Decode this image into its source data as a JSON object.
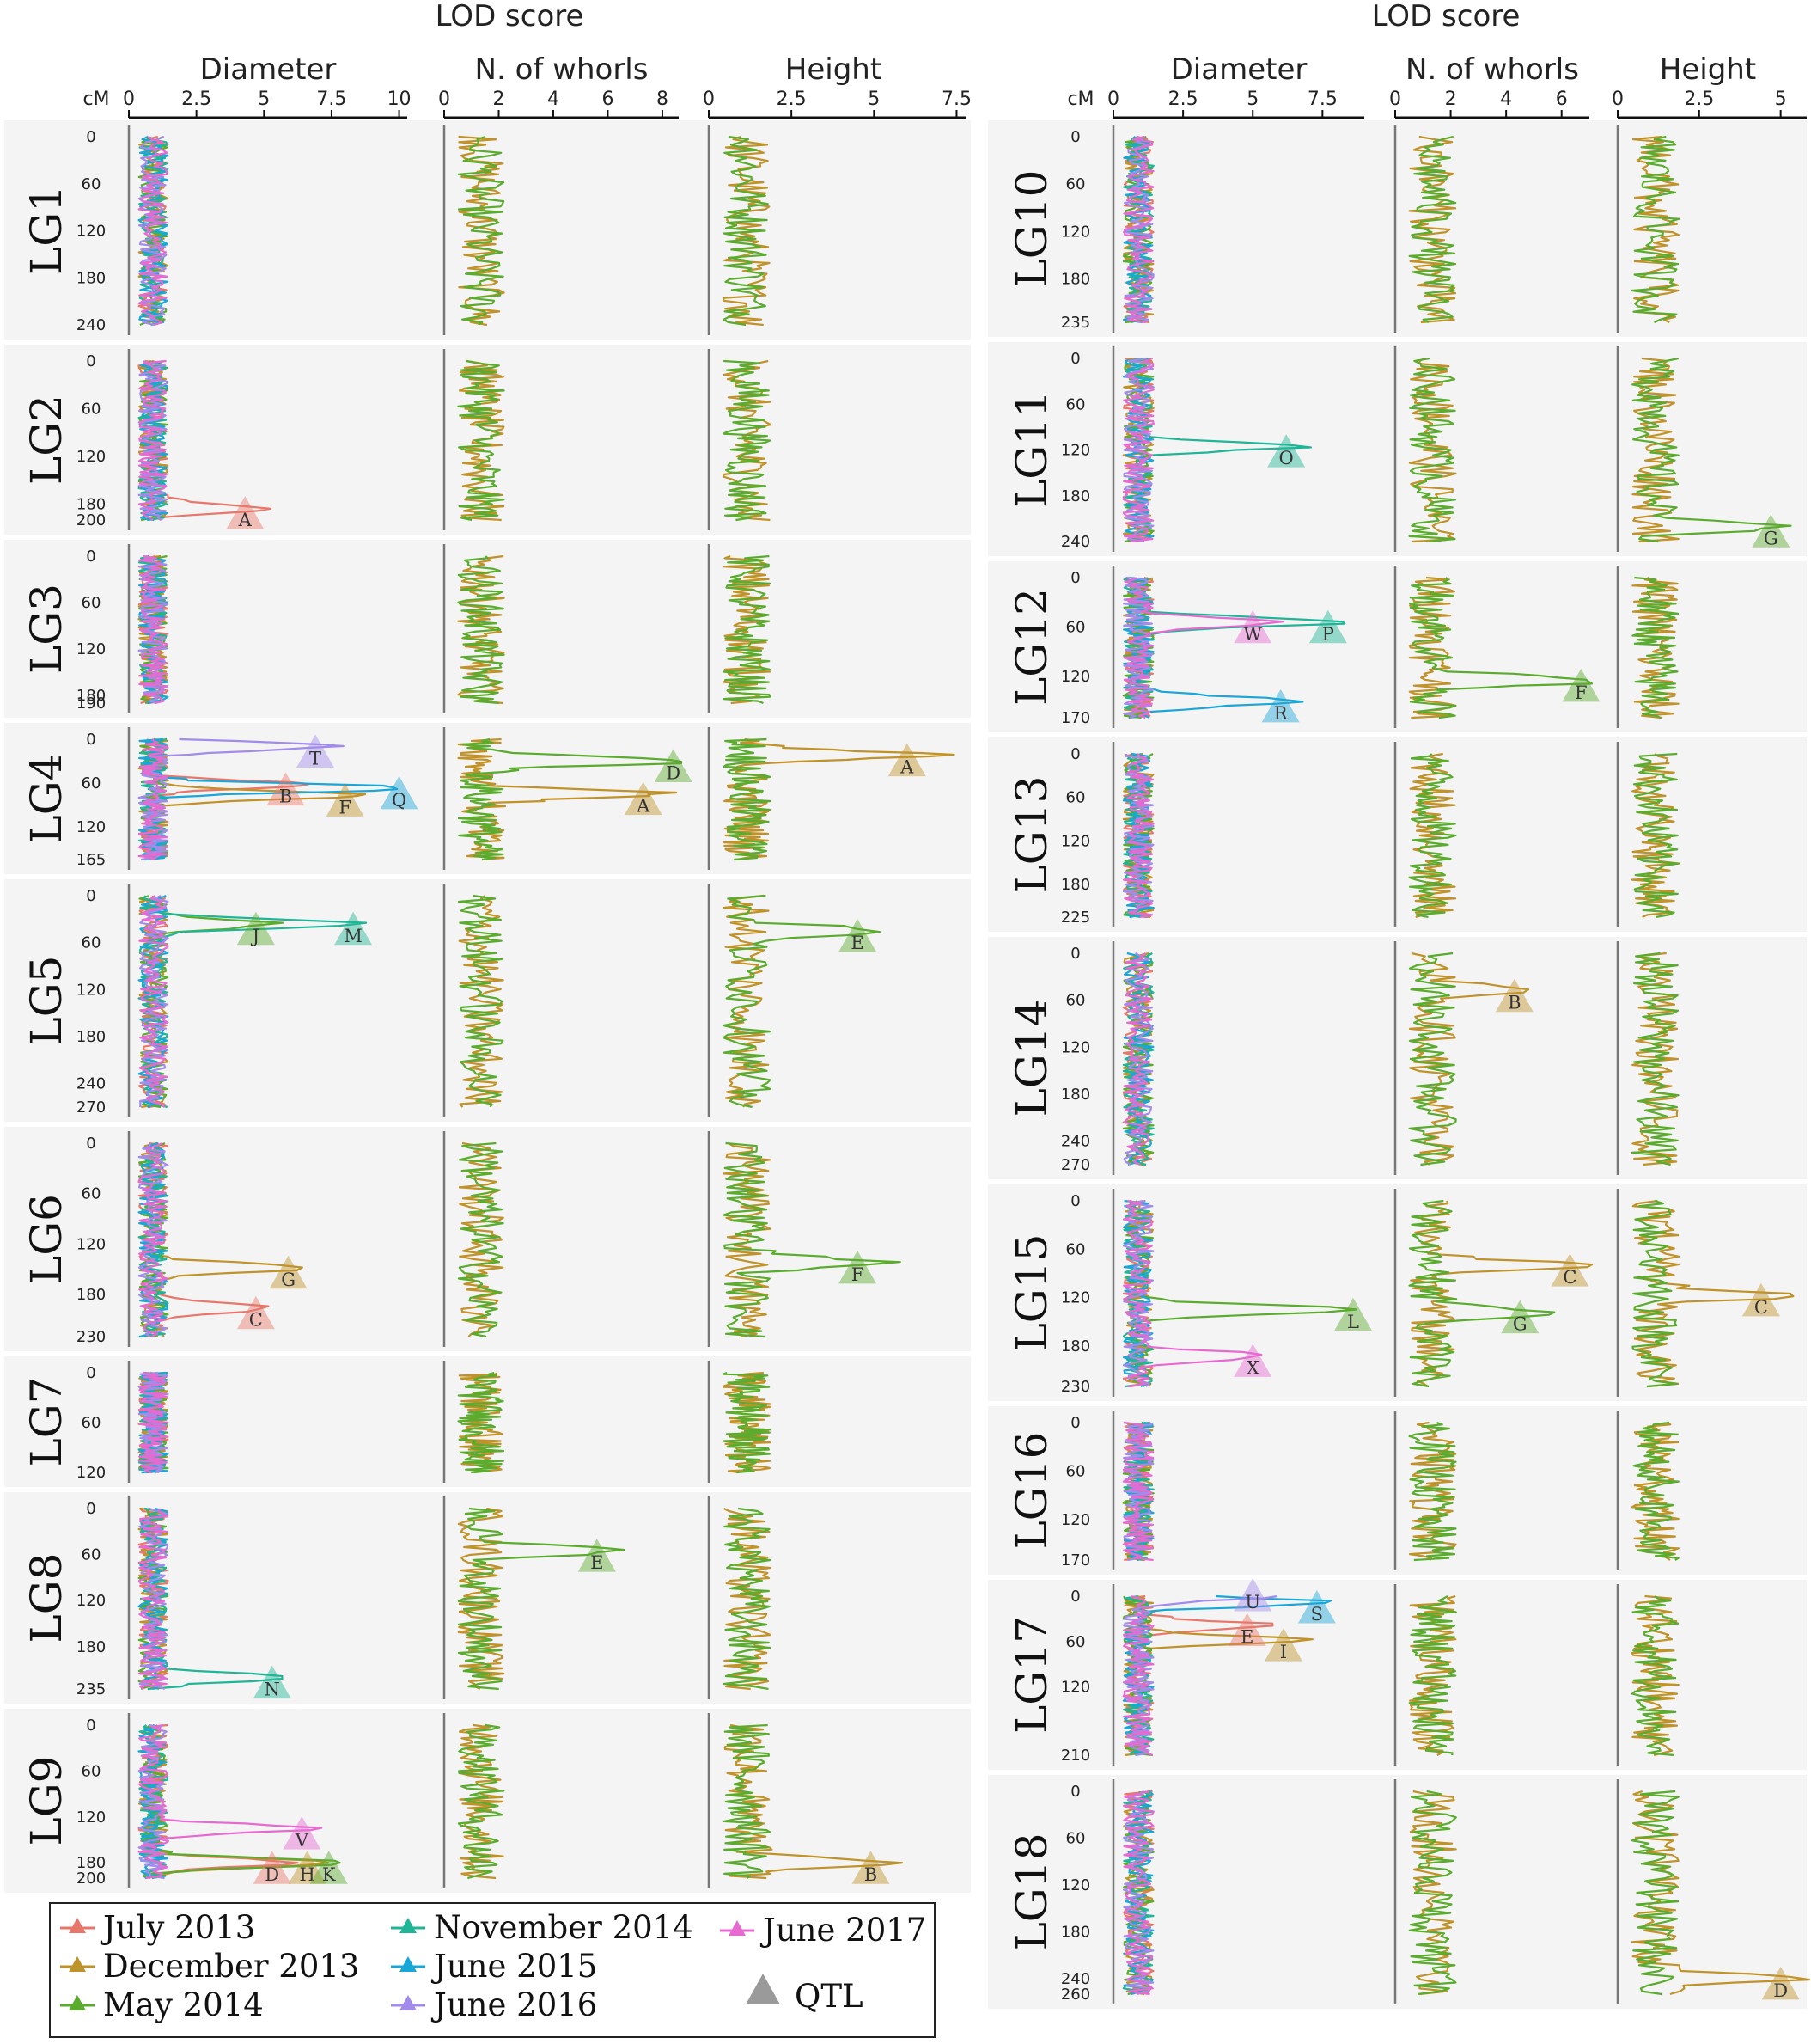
{
  "chart_data": {
    "type": "line",
    "x_axis_label": "LOD score",
    "y_axis_unit": "cM",
    "traits": [
      {
        "name": "Diameter",
        "ticks_left": [
          0,
          2.5,
          5,
          7.5,
          10
        ],
        "ticks_right": [
          0,
          2.5,
          5,
          7.5
        ]
      },
      {
        "name": "N. of whorls",
        "ticks_left": [
          0,
          2,
          4,
          6,
          8
        ],
        "ticks_right": [
          0,
          2,
          4,
          6
        ]
      },
      {
        "name": "Height",
        "ticks_left": [
          0,
          2.5,
          5,
          7.5
        ],
        "ticks_right": [
          0,
          2.5,
          5
        ]
      }
    ],
    "series": [
      {
        "name": "July 2013",
        "color": "#e8776b"
      },
      {
        "name": "December 2013",
        "color": "#c0922a"
      },
      {
        "name": "May 2014",
        "color": "#5aab2e"
      },
      {
        "name": "November 2014",
        "color": "#1fb596"
      },
      {
        "name": "June 2015",
        "color": "#1aa6d6"
      },
      {
        "name": "June 2016",
        "color": "#a28bea"
      },
      {
        "name": "June 2017",
        "color": "#e76ad0"
      }
    ],
    "qtl_legend_label": "QTL",
    "linkage_groups": [
      {
        "name": "LG1",
        "column": 0,
        "ticks": [
          0,
          60,
          120,
          180,
          240
        ],
        "max": 240,
        "qtls": []
      },
      {
        "name": "LG2",
        "column": 0,
        "ticks": [
          0,
          60,
          120,
          180,
          200
        ],
        "max": 200,
        "qtls": [
          {
            "trait": 0,
            "label": "A",
            "series": 0,
            "lod": 4.3,
            "cm": 185
          }
        ]
      },
      {
        "name": "LG3",
        "column": 0,
        "ticks": [
          0,
          60,
          120,
          180,
          190
        ],
        "max": 190,
        "qtls": []
      },
      {
        "name": "LG4",
        "column": 0,
        "ticks": [
          0,
          60,
          120,
          165
        ],
        "max": 165,
        "qtls": [
          {
            "trait": 0,
            "label": "T",
            "series": 5,
            "lod": 6.9,
            "cm": 10
          },
          {
            "trait": 0,
            "label": "B",
            "series": 0,
            "lod": 5.8,
            "cm": 62
          },
          {
            "trait": 0,
            "label": "F",
            "series": 1,
            "lod": 8.0,
            "cm": 77
          },
          {
            "trait": 0,
            "label": "Q",
            "series": 4,
            "lod": 10.0,
            "cm": 67
          },
          {
            "trait": 1,
            "label": "D",
            "series": 2,
            "lod": 8.4,
            "cm": 30
          },
          {
            "trait": 1,
            "label": "A",
            "series": 1,
            "lod": 7.3,
            "cm": 75
          },
          {
            "trait": 2,
            "label": "A",
            "series": 1,
            "lod": 6.0,
            "cm": 22
          }
        ]
      },
      {
        "name": "LG5",
        "column": 0,
        "ticks": [
          0,
          60,
          120,
          180,
          240,
          270
        ],
        "max": 270,
        "qtls": [
          {
            "trait": 0,
            "label": "J",
            "series": 2,
            "lod": 4.7,
            "cm": 36
          },
          {
            "trait": 0,
            "label": "M",
            "series": 3,
            "lod": 8.3,
            "cm": 36
          },
          {
            "trait": 2,
            "label": "E",
            "series": 2,
            "lod": 4.5,
            "cm": 45
          }
        ]
      },
      {
        "name": "LG6",
        "column": 0,
        "ticks": [
          0,
          60,
          120,
          180,
          230
        ],
        "max": 230,
        "qtls": [
          {
            "trait": 0,
            "label": "G",
            "series": 1,
            "lod": 5.9,
            "cm": 148
          },
          {
            "trait": 0,
            "label": "C",
            "series": 0,
            "lod": 4.7,
            "cm": 196
          },
          {
            "trait": 2,
            "label": "F",
            "series": 2,
            "lod": 4.5,
            "cm": 142
          }
        ]
      },
      {
        "name": "LG7",
        "column": 0,
        "ticks": [
          0,
          60,
          120
        ],
        "max": 120,
        "qtls": []
      },
      {
        "name": "LG8",
        "column": 0,
        "ticks": [
          0,
          60,
          120,
          180,
          235
        ],
        "max": 235,
        "qtls": [
          {
            "trait": 0,
            "label": "N",
            "series": 3,
            "lod": 5.3,
            "cm": 220
          },
          {
            "trait": 1,
            "label": "E",
            "series": 2,
            "lod": 5.6,
            "cm": 55
          }
        ]
      },
      {
        "name": "LG9",
        "column": 0,
        "ticks": [
          0,
          60,
          120,
          180,
          200
        ],
        "max": 200,
        "qtls": [
          {
            "trait": 0,
            "label": "V",
            "series": 6,
            "lod": 6.4,
            "cm": 135
          },
          {
            "trait": 0,
            "label": "D",
            "series": 0,
            "lod": 5.3,
            "cm": 180
          },
          {
            "trait": 0,
            "label": "H",
            "series": 1,
            "lod": 6.6,
            "cm": 180
          },
          {
            "trait": 0,
            "label": "K",
            "series": 2,
            "lod": 7.4,
            "cm": 180
          },
          {
            "trait": 2,
            "label": "B",
            "series": 1,
            "lod": 4.9,
            "cm": 180
          }
        ]
      },
      {
        "name": "LG10",
        "column": 1,
        "ticks": [
          0,
          60,
          120,
          180,
          235
        ],
        "max": 235,
        "qtls": []
      },
      {
        "name": "LG11",
        "column": 1,
        "ticks": [
          0,
          60,
          120,
          180,
          240
        ],
        "max": 240,
        "qtls": [
          {
            "trait": 0,
            "label": "O",
            "series": 3,
            "lod": 6.2,
            "cm": 115
          },
          {
            "trait": 2,
            "label": "G",
            "series": 2,
            "lod": 4.7,
            "cm": 220
          }
        ]
      },
      {
        "name": "LG12",
        "column": 1,
        "ticks": [
          0,
          60,
          120,
          170
        ],
        "max": 170,
        "qtls": [
          {
            "trait": 0,
            "label": "W",
            "series": 6,
            "lod": 5.0,
            "cm": 54
          },
          {
            "trait": 0,
            "label": "P",
            "series": 3,
            "lod": 7.7,
            "cm": 54
          },
          {
            "trait": 0,
            "label": "R",
            "series": 4,
            "lod": 6.0,
            "cm": 150
          },
          {
            "trait": 1,
            "label": "F",
            "series": 2,
            "lod": 6.7,
            "cm": 125
          }
        ]
      },
      {
        "name": "LG13",
        "column": 1,
        "ticks": [
          0,
          60,
          120,
          180,
          225
        ],
        "max": 225,
        "qtls": []
      },
      {
        "name": "LG14",
        "column": 1,
        "ticks": [
          0,
          60,
          120,
          180,
          240,
          270
        ],
        "max": 270,
        "qtls": [
          {
            "trait": 1,
            "label": "B",
            "series": 1,
            "lod": 4.3,
            "cm": 48
          }
        ]
      },
      {
        "name": "LG15",
        "column": 1,
        "ticks": [
          0,
          60,
          120,
          180,
          230
        ],
        "max": 230,
        "qtls": [
          {
            "trait": 0,
            "label": "L",
            "series": 2,
            "lod": 8.6,
            "cm": 135
          },
          {
            "trait": 0,
            "label": "X",
            "series": 6,
            "lod": 5.0,
            "cm": 192
          },
          {
            "trait": 1,
            "label": "C",
            "series": 1,
            "lod": 6.3,
            "cm": 80
          },
          {
            "trait": 1,
            "label": "G",
            "series": 2,
            "lod": 4.5,
            "cm": 138
          },
          {
            "trait": 2,
            "label": "C",
            "series": 1,
            "lod": 4.4,
            "cm": 117
          }
        ]
      },
      {
        "name": "LG16",
        "column": 1,
        "ticks": [
          0,
          60,
          120,
          170
        ],
        "max": 170,
        "qtls": []
      },
      {
        "name": "LG17",
        "column": 1,
        "ticks": [
          0,
          60,
          120,
          210
        ],
        "max": 210,
        "qtls": [
          {
            "trait": 0,
            "label": "U",
            "series": 5,
            "lod": 5.0,
            "cm": -8
          },
          {
            "trait": 0,
            "label": "S",
            "series": 4,
            "lod": 7.3,
            "cm": 8
          },
          {
            "trait": 0,
            "label": "E",
            "series": 0,
            "lod": 4.8,
            "cm": 38
          },
          {
            "trait": 0,
            "label": "I",
            "series": 1,
            "lod": 6.1,
            "cm": 58
          }
        ]
      },
      {
        "name": "LG18",
        "column": 1,
        "ticks": [
          0,
          60,
          120,
          180,
          240,
          260
        ],
        "max": 260,
        "qtls": [
          {
            "trait": 2,
            "label": "D",
            "series": 1,
            "lod": 5.0,
            "cm": 240
          }
        ]
      }
    ]
  }
}
